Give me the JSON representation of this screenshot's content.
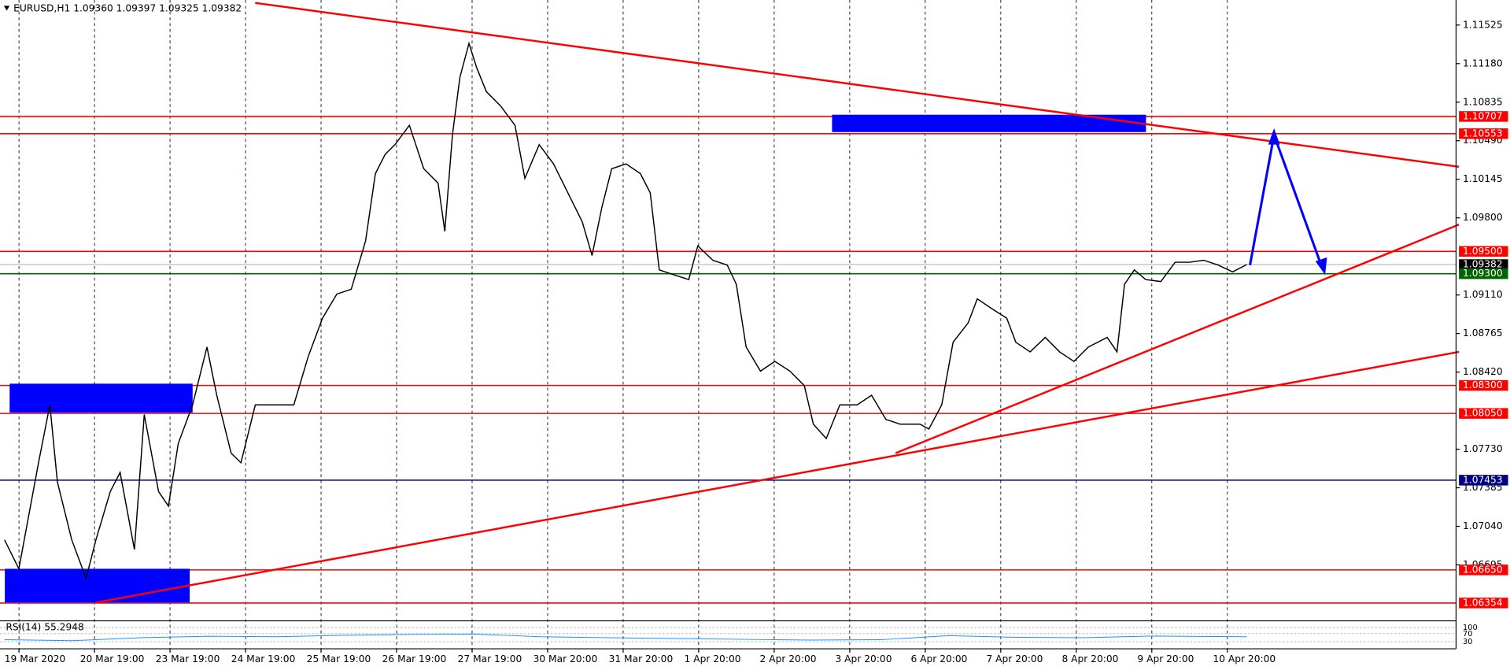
{
  "chart_data": [
    {
      "type": "line",
      "title": "EURUSD,H1  1.09360 1.09397 1.09325 1.09382",
      "color": "#000000",
      "x": [
        0,
        0.19,
        0.45,
        0.6,
        0.7,
        0.89,
        1.08,
        1.21,
        1.4,
        1.53,
        1.72,
        1.85,
        2.04,
        2.17,
        2.3,
        2.49,
        2.68,
        2.81,
        3,
        3.13,
        3.32,
        3.57,
        3.83,
        4.02,
        4.21,
        4.4,
        4.59,
        4.78,
        4.91,
        5.04,
        5.17,
        5.36,
        5.55,
        5.74,
        5.83,
        5.93,
        6.03,
        6.15,
        6.25,
        6.38,
        6.57,
        6.76,
        6.89,
        7.08,
        7.27,
        7.46,
        7.65,
        7.78,
        7.91,
        8.04,
        8.23,
        8.42,
        8.55,
        8.67,
        8.86,
        9.06,
        9.18,
        9.38,
        9.57,
        9.69,
        9.82,
        10.01,
        10.2,
        10.4,
        10.59,
        10.71,
        10.88,
        11.06,
        11.29,
        11.48,
        11.67,
        11.86,
        12.12,
        12.24,
        12.41,
        12.56,
        12.76,
        12.88,
        13.07,
        13.27,
        13.39,
        13.58,
        13.78,
        13.97,
        14.16,
        14.35,
        14.6,
        14.73,
        14.83,
        14.96,
        15.11,
        15.31,
        15.5,
        15.69,
        15.88,
        16.07,
        16.26,
        16.45
      ],
      "values": [
        1.06919,
        1.0666,
        1.07609,
        1.08126,
        1.07436,
        1.06919,
        1.06574,
        1.06919,
        1.0735,
        1.07523,
        1.06833,
        1.0804,
        1.0735,
        1.07221,
        1.07781,
        1.08126,
        1.08644,
        1.08213,
        1.07695,
        1.07609,
        1.08126,
        1.08126,
        1.08126,
        1.08558,
        1.08903,
        1.09118,
        1.09161,
        1.09593,
        1.10196,
        1.10369,
        1.10455,
        1.10628,
        1.1024,
        1.1011,
        1.09679,
        1.10541,
        1.11059,
        1.11361,
        1.11145,
        1.1093,
        1.108,
        1.10628,
        1.10153,
        1.10455,
        1.10283,
        1.10024,
        1.09765,
        1.09463,
        1.09895,
        1.1024,
        1.10283,
        1.10196,
        1.10024,
        1.09334,
        1.09291,
        1.09248,
        1.0955,
        1.0942,
        1.09377,
        1.09205,
        1.08644,
        1.08428,
        1.08515,
        1.08428,
        1.08299,
        1.07954,
        1.07825,
        1.08126,
        1.08126,
        1.08213,
        1.07997,
        1.07954,
        1.07954,
        1.07911,
        1.08126,
        1.08687,
        1.0886,
        1.09075,
        1.08989,
        1.08903,
        1.08687,
        1.08601,
        1.0873,
        1.08601,
        1.08515,
        1.08644,
        1.0873,
        1.08601,
        1.09205,
        1.09334,
        1.09248,
        1.0923,
        1.09403,
        1.09403,
        1.0942,
        1.09377,
        1.09317,
        1.09382
      ],
      "xlim": [
        -0.06,
        19.22
      ],
      "ylim": [
        1.06203,
        1.11749
      ],
      "grid": true,
      "xticks": [
        {
          "value": 0,
          "label": "19 Mar 2020"
        },
        {
          "value": 1,
          "label": "20 Mar 19:00"
        },
        {
          "value": 2,
          "label": "23 Mar 19:00"
        },
        {
          "value": 3,
          "label": "24 Mar 19:00"
        },
        {
          "value": 4,
          "label": "25 Mar 19:00"
        },
        {
          "value": 5,
          "label": "26 Mar 19:00"
        },
        {
          "value": 6,
          "label": "27 Mar 19:00"
        },
        {
          "value": 7,
          "label": "30 Mar 20:00"
        },
        {
          "value": 8,
          "label": "31 Mar 20:00"
        },
        {
          "value": 9,
          "label": "1 Apr 20:00"
        },
        {
          "value": 10,
          "label": "2 Apr 20:00"
        },
        {
          "value": 11,
          "label": "3 Apr 20:00"
        },
        {
          "value": 12,
          "label": "6 Apr 20:00"
        },
        {
          "value": 13,
          "label": "7 Apr 20:00"
        },
        {
          "value": 14,
          "label": "8 Apr 20:00"
        },
        {
          "value": 15,
          "label": "9 Apr 20:00"
        },
        {
          "value": 16,
          "label": "10 Apr 20:00"
        }
      ],
      "yticks": [
        {
          "value": 1.11525,
          "label": "1.11525"
        },
        {
          "value": 1.1118,
          "label": "1.11180"
        },
        {
          "value": 1.10835,
          "label": "1.10835"
        },
        {
          "value": 1.1049,
          "label": "1.10490"
        },
        {
          "value": 1.10145,
          "label": "1.10145"
        },
        {
          "value": 1.098,
          "label": "1.09800"
        },
        {
          "value": 1.0911,
          "label": "1.09110"
        },
        {
          "value": 1.08765,
          "label": "1.08765"
        },
        {
          "value": 1.0842,
          "label": "1.08420"
        },
        {
          "value": 1.0773,
          "label": "1.07730"
        },
        {
          "value": 1.07385,
          "label": "1.07385"
        },
        {
          "value": 1.0704,
          "label": "1.07040"
        },
        {
          "value": 1.06695,
          "label": "1.06695"
        }
      ],
      "levels": [
        {
          "value": 1.10707,
          "label": "1.10707",
          "color": "#ff0000"
        },
        {
          "value": 1.10553,
          "label": "1.10553",
          "color": "#ff0000"
        },
        {
          "value": 1.095,
          "label": "1.09500",
          "color": "#ff0000"
        },
        {
          "value": 1.09382,
          "label": "1.09382",
          "color": "#000000"
        },
        {
          "value": 1.093,
          "label": "1.09300",
          "color": "#006400"
        },
        {
          "value": 1.083,
          "label": "1.08300",
          "color": "#ff0000"
        },
        {
          "value": 1.0805,
          "label": "1.08050",
          "color": "#ff0000"
        },
        {
          "value": 1.07453,
          "label": "1.07453",
          "color": "#000080"
        },
        {
          "value": 1.0665,
          "label": "1.06650",
          "color": "#ff0000"
        },
        {
          "value": 1.06354,
          "label": "1.06354",
          "color": "#ff0000"
        }
      ]
    },
    {
      "type": "line",
      "title": "RSI(14) 55.2948",
      "color": "#1e90ff",
      "x": [
        0,
        0.9,
        1.8,
        2.7,
        3.6,
        4.5,
        5.4,
        6.2,
        7.1,
        8,
        8.9,
        9.8,
        10.7,
        11.6,
        12.5,
        13.4,
        14.3,
        15.2,
        16.45
      ],
      "values": [
        40,
        35,
        50,
        57,
        55,
        62,
        66,
        68,
        55,
        50,
        46,
        42,
        38,
        40,
        60,
        52,
        50,
        58,
        55
      ],
      "ylim": [
        0,
        100
      ],
      "yticks": [
        100,
        70,
        30
      ]
    }
  ]
}
